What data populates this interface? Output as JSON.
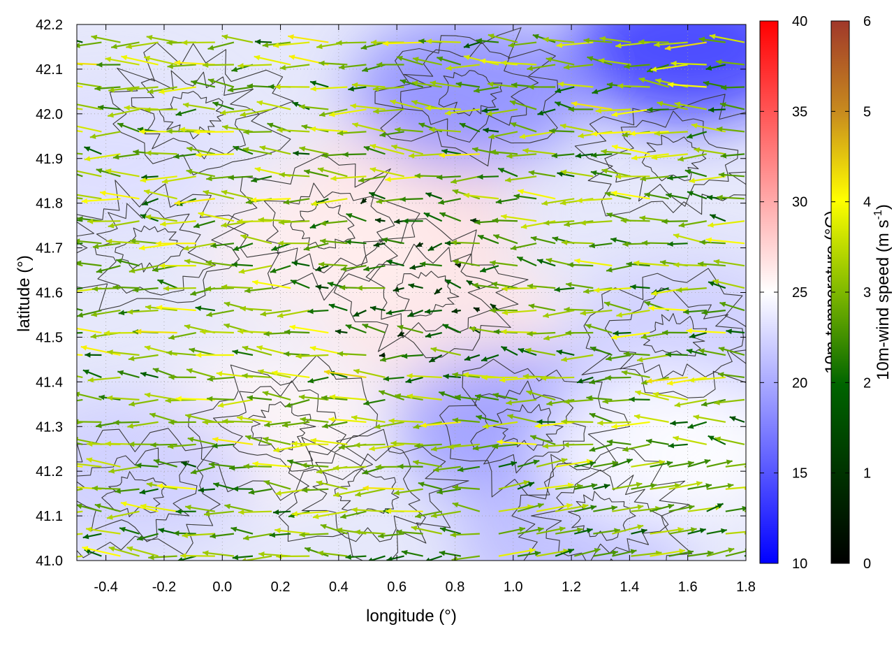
{
  "chart_data": {
    "type": "vector-field",
    "description_fields": [
      "temperature shading",
      "wind arrows",
      "terrain contours"
    ],
    "xlabel": "longitude (°)",
    "ylabel": "latitude (°)",
    "xlim": [
      -0.5,
      1.8
    ],
    "ylim": [
      41.0,
      42.2
    ],
    "x_ticks": [
      "-0.4",
      "-0.2",
      "0.0",
      "0.2",
      "0.4",
      "0.6",
      "0.8",
      "1.0",
      "1.2",
      "1.4",
      "1.6",
      "1.8"
    ],
    "x_tick_values": [
      -0.4,
      -0.2,
      0.0,
      0.2,
      0.4,
      0.6,
      0.8,
      1.0,
      1.2,
      1.4,
      1.6,
      1.8
    ],
    "y_ticks": [
      "41.0",
      "41.1",
      "41.2",
      "41.3",
      "41.4",
      "41.5",
      "41.6",
      "41.7",
      "41.8",
      "41.9",
      "42.0",
      "42.1",
      "42.2"
    ],
    "y_tick_values": [
      41.0,
      41.1,
      41.2,
      41.3,
      41.4,
      41.5,
      41.6,
      41.7,
      41.8,
      41.9,
      42.0,
      42.1,
      42.2
    ],
    "grid": true,
    "colorbar_temperature": {
      "label": "10m-temperature (°C)",
      "range": [
        10,
        40
      ],
      "ticks": [
        "10",
        "15",
        "20",
        "25",
        "30",
        "35",
        "40"
      ],
      "tick_values": [
        10,
        15,
        20,
        25,
        30,
        35,
        40
      ],
      "colors": [
        "#0000ff",
        "#ffffff",
        "#ff0000"
      ]
    },
    "colorbar_wind": {
      "label": "10m-wind speed (m s",
      "label_sup": "-1",
      "label_end": ")",
      "range": [
        0,
        6
      ],
      "ticks": [
        "0",
        "1",
        "2",
        "3",
        "4",
        "5",
        "6"
      ],
      "tick_values": [
        0,
        1,
        2,
        3,
        4,
        5,
        6
      ],
      "colors": [
        "#000000",
        "#006400",
        "#7fb800",
        "#ffff00",
        "#c88c1e",
        "#a0382a"
      ]
    },
    "temperature_zones": [
      {
        "lon": 0.6,
        "lat": 41.8,
        "temp": 27
      },
      {
        "lon": 0.75,
        "lat": 41.55,
        "temp": 26.5
      },
      {
        "lon": 0.35,
        "lat": 41.7,
        "temp": 26
      },
      {
        "lon": 0.15,
        "lat": 41.3,
        "temp": 25.5
      },
      {
        "lon": 1.6,
        "lat": 42.15,
        "temp": 13
      },
      {
        "lon": 0.85,
        "lat": 42.05,
        "temp": 18
      },
      {
        "lon": 1.0,
        "lat": 41.3,
        "temp": 19
      },
      {
        "lon": 1.2,
        "lat": 41.05,
        "temp": 21
      },
      {
        "lon": -0.3,
        "lat": 41.2,
        "temp": 22
      },
      {
        "lon": -0.4,
        "lat": 41.9,
        "temp": 23
      },
      {
        "lon": 1.6,
        "lat": 41.5,
        "temp": 22
      },
      {
        "lon": 1.5,
        "lat": 41.25,
        "temp": 25
      }
    ],
    "prevailing_wind": {
      "u": -2.8,
      "v": 0.1,
      "note": "mostly easterly winds (blowing westward), weaker in central area"
    }
  }
}
